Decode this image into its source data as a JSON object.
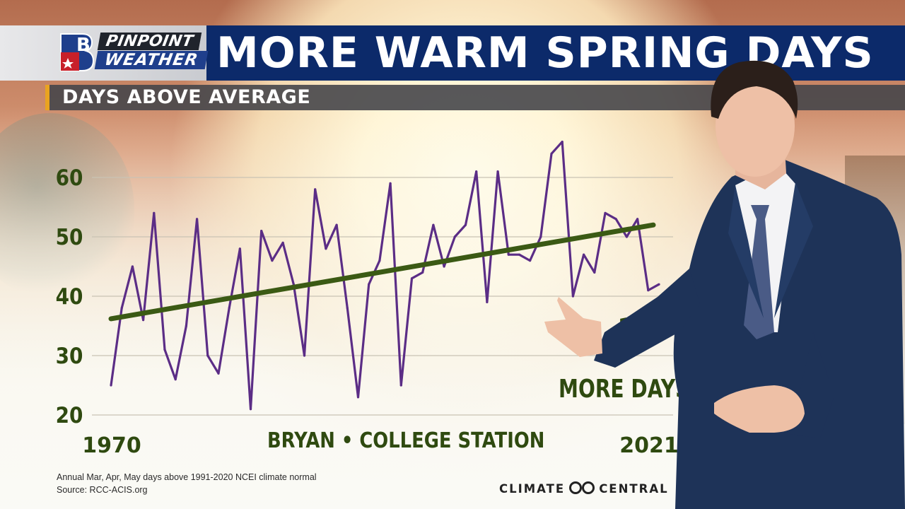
{
  "branding": {
    "pin": "PINPOINT",
    "weather": "WEATHER"
  },
  "title": "MORE WARM SPRING DAYS",
  "subtitle": "DAYS ABOVE AVERAGE",
  "station_label": "BRYAN • COLLEGE STATION",
  "annotation": {
    "number": "1",
    "text": "MORE DAYS"
  },
  "footnote": "Annual Mar, Apr, May days above 1991-2020 NCEI climate normal",
  "source": "Source: RCC-ACIS.org",
  "credit": {
    "left": "CLIMATE",
    "right": "CENTRAL"
  },
  "colors": {
    "line": "#5b2d86",
    "trend": "#3b5a14",
    "title_bar": "#0c2a6a",
    "accent": "#e9a320",
    "suit": "#1e3358"
  },
  "chart_data": {
    "type": "line",
    "title": "DAYS ABOVE AVERAGE",
    "xlabel": "",
    "ylabel": "",
    "x_tick_labels": [
      "1970",
      "2021"
    ],
    "y_ticks": [
      20,
      30,
      40,
      50,
      60
    ],
    "ylim": [
      20,
      65
    ],
    "grid": true,
    "x": [
      1970,
      1971,
      1972,
      1973,
      1974,
      1975,
      1976,
      1977,
      1978,
      1979,
      1980,
      1981,
      1982,
      1983,
      1984,
      1985,
      1986,
      1987,
      1988,
      1989,
      1990,
      1991,
      1992,
      1993,
      1994,
      1995,
      1996,
      1997,
      1998,
      1999,
      2000,
      2001,
      2002,
      2003,
      2004,
      2005,
      2006,
      2007,
      2008,
      2009,
      2010,
      2011,
      2012,
      2013,
      2014,
      2015,
      2016,
      2017,
      2018,
      2019,
      2020,
      2021
    ],
    "series": [
      {
        "name": "",
        "values": [
          25,
          38,
          45,
          36,
          54,
          31,
          26,
          35,
          53,
          30,
          27,
          38,
          48,
          21,
          51,
          46,
          49,
          42,
          30,
          58,
          48,
          52,
          38,
          23,
          42,
          46,
          59,
          25,
          43,
          44,
          52,
          45,
          50,
          52,
          61,
          39,
          61,
          47,
          47,
          46,
          50,
          64,
          66,
          40,
          47,
          44,
          54,
          53,
          50,
          53,
          41,
          42
        ]
      },
      {
        "name": "",
        "trend": [
          36.2,
          52.0
        ]
      }
    ]
  }
}
